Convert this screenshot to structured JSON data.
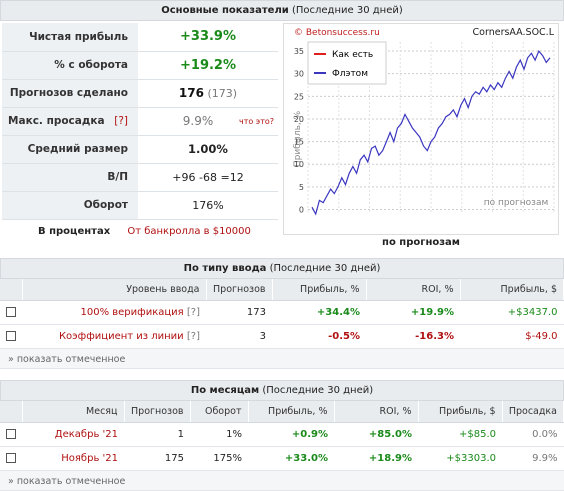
{
  "main_stats": {
    "title": "Основные показатели",
    "period": "(Последние 30 дней)",
    "rows": [
      {
        "label": "Чистая прибыль",
        "value": "+33.9%"
      },
      {
        "label": "% с оборота",
        "value": "+19.2%"
      },
      {
        "label": "Прогнозов сделано",
        "value": "176",
        "extra": "(173)"
      },
      {
        "label": "Макс. просадка",
        "help": "[?]",
        "value": "9.9%",
        "note": "что это?"
      },
      {
        "label": "Средний размер",
        "value": "1.00%"
      },
      {
        "label": "В/П",
        "wins": "+96",
        "losses": "-68",
        "draws": "=12"
      },
      {
        "label": "Оборот",
        "value": "176%"
      }
    ],
    "in_percent_label": "В процентах",
    "bankroll_note": "От банкролла в $10000"
  },
  "chart": {
    "watermark": "© Betonsuccess.ru",
    "ticker": "CornersAA.SOC.L",
    "ylabel": "Прибыль, %",
    "inner_xlabel": "по прогнозам",
    "caption": "по прогнозам",
    "yticks": [
      "0",
      "5",
      "10",
      "15",
      "20",
      "25",
      "30",
      "35"
    ],
    "legend": [
      {
        "name": "Как есть",
        "color": "#e02020"
      },
      {
        "name": "Флэтом",
        "color": "#3a36c0"
      }
    ]
  },
  "chart_data": {
    "type": "line",
    "ylim": [
      -1,
      37
    ],
    "series": [
      {
        "name": "Флэтом",
        "color": "#3a36c0",
        "values": [
          0.5,
          -1,
          2,
          1.5,
          3,
          4.5,
          3.5,
          5,
          7,
          5.5,
          8,
          9.5,
          8,
          11,
          12,
          10.5,
          13.5,
          14,
          12,
          13,
          15,
          17,
          15,
          18,
          19,
          21,
          19.5,
          18,
          17,
          16,
          14,
          13,
          15,
          16,
          18,
          19,
          20.5,
          21,
          22,
          20.5,
          23,
          24.5,
          22.5,
          25,
          26,
          25.5,
          27,
          26,
          27.5,
          26.5,
          28,
          27,
          29,
          30.5,
          29,
          31.5,
          33,
          31,
          33.5,
          34.5,
          33,
          35,
          34,
          32.5,
          33.5
        ]
      }
    ]
  },
  "by_input": {
    "title": "По типу ввода",
    "period": "(Последние 30 дней)",
    "headers": [
      "Уровень ввода",
      "Прогнозов",
      "Прибыль, %",
      "ROI, %",
      "Прибыль, $"
    ],
    "rows": [
      {
        "level": "100% верификация",
        "help": "[?]",
        "count": "173",
        "profit_pct": "+34.4%",
        "roi": "+19.9%",
        "profit_usd": "+$3437.0"
      },
      {
        "level": "Коэффициент из линии",
        "help": "[?]",
        "count": "3",
        "profit_pct": "-0.5%",
        "roi": "-16.3%",
        "profit_usd": "$-49.0"
      }
    ],
    "show_marked": "» показать отмеченное"
  },
  "by_month": {
    "title": "По месяцам",
    "period": "(Последние 30 дней)",
    "headers": [
      "Месяц",
      "Прогнозов",
      "Оборот",
      "Прибыль, %",
      "ROI, %",
      "Прибыль, $",
      "Просадка"
    ],
    "rows": [
      {
        "month": "Декабрь '21",
        "count": "1",
        "turnover": "1%",
        "profit_pct": "+0.9%",
        "roi": "+85.0%",
        "profit_usd": "+$85.0",
        "drawdown": "0.0%"
      },
      {
        "month": "Ноябрь '21",
        "count": "175",
        "turnover": "175%",
        "profit_pct": "+33.0%",
        "roi": "+18.9%",
        "profit_usd": "+$3303.0",
        "drawdown": "9.9%"
      }
    ],
    "show_marked": "» показать отмеченное"
  }
}
